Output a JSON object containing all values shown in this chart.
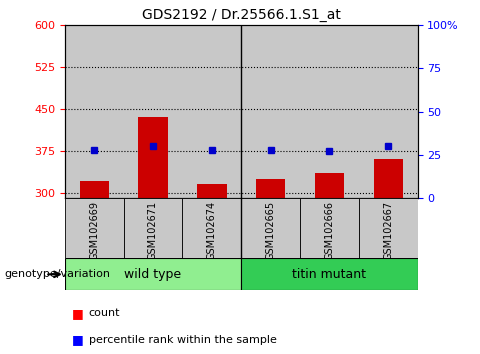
{
  "title": "GDS2192 / Dr.25566.1.S1_at",
  "samples": [
    "GSM102669",
    "GSM102671",
    "GSM102674",
    "GSM102665",
    "GSM102666",
    "GSM102667"
  ],
  "counts": [
    320,
    435,
    315,
    325,
    335,
    360
  ],
  "percentiles": [
    28,
    30,
    28,
    28,
    27,
    30
  ],
  "wt_color": "#90EE90",
  "tm_color": "#33CC55",
  "ylim_left": [
    290,
    600
  ],
  "ylim_right": [
    0,
    100
  ],
  "yticks_left": [
    300,
    375,
    450,
    525,
    600
  ],
  "yticks_right": [
    0,
    25,
    50,
    75,
    100
  ],
  "ytick_labels_right": [
    "0",
    "25",
    "50",
    "75",
    "100%"
  ],
  "bar_color": "#CC0000",
  "dot_color": "#0000CC",
  "bar_width": 0.5,
  "bar_bottom": 290,
  "bg_color": "#C8C8C8",
  "legend_count_label": "count",
  "legend_percentile_label": "percentile rank within the sample",
  "xlabel": "genotype/variation",
  "wt_label": "wild type",
  "tm_label": "titin mutant"
}
